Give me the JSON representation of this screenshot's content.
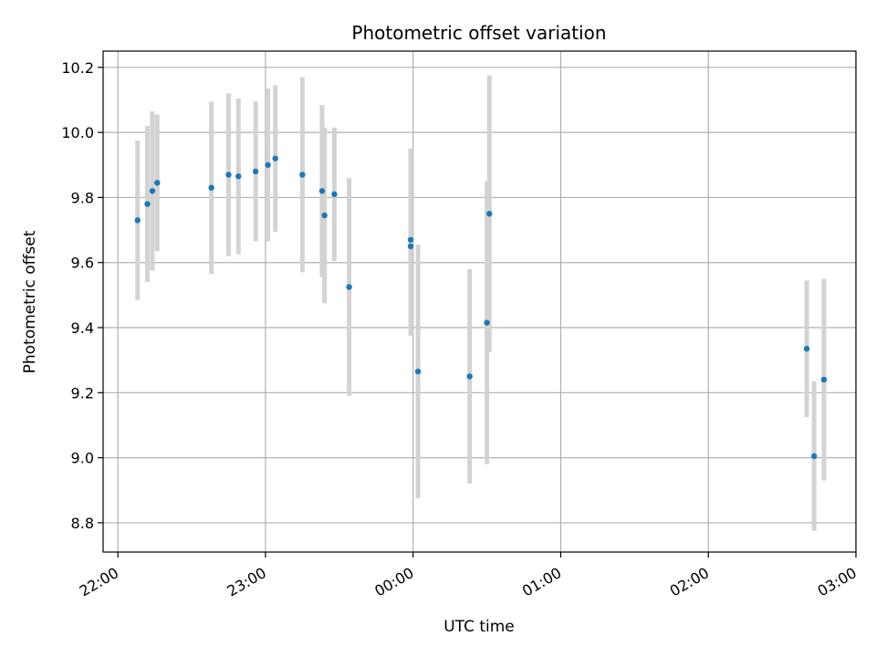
{
  "chart_data": {
    "type": "scatter",
    "title": "Photometric offset variation",
    "xlabel": "UTC time",
    "ylabel": "Photometric offset",
    "grid": true,
    "x_tick_labels": [
      "22:00",
      "23:00",
      "00:00",
      "01:00",
      "02:00",
      "03:00"
    ],
    "x_tick_hours": [
      22,
      23,
      24,
      25,
      26,
      27
    ],
    "xlim_hours": [
      21.9,
      27.0
    ],
    "y_ticks": [
      8.8,
      9.0,
      9.2,
      9.4,
      9.6,
      9.8,
      10.0,
      10.2
    ],
    "ylim": [
      8.71,
      10.25
    ],
    "point_color": "#1f77b4",
    "errorbar_color": "#d3d3d3",
    "points": [
      {
        "time": "22:08",
        "y": 9.73,
        "err": 0.245
      },
      {
        "time": "22:12",
        "y": 9.78,
        "err": 0.24
      },
      {
        "time": "22:14",
        "y": 9.82,
        "err": 0.245
      },
      {
        "time": "22:16",
        "y": 9.845,
        "err": 0.21
      },
      {
        "time": "22:38",
        "y": 9.83,
        "err": 0.265
      },
      {
        "time": "22:45",
        "y": 9.87,
        "err": 0.25
      },
      {
        "time": "22:49",
        "y": 9.865,
        "err": 0.24
      },
      {
        "time": "22:56",
        "y": 9.88,
        "err": 0.215
      },
      {
        "time": "23:01",
        "y": 9.9,
        "err": 0.235
      },
      {
        "time": "23:04",
        "y": 9.92,
        "err": 0.225
      },
      {
        "time": "23:15",
        "y": 9.87,
        "err": 0.3
      },
      {
        "time": "23:23",
        "y": 9.82,
        "err": 0.265
      },
      {
        "time": "23:24",
        "y": 9.745,
        "err": 0.27
      },
      {
        "time": "23:28",
        "y": 9.81,
        "err": 0.205
      },
      {
        "time": "23:34",
        "y": 9.525,
        "err": 0.335
      },
      {
        "time": "23:59",
        "y": 9.67,
        "err": 0.28
      },
      {
        "time": "23:59",
        "y": 9.65,
        "err": 0.275
      },
      {
        "time": "00:02",
        "y": 9.265,
        "err": 0.39
      },
      {
        "time": "00:23",
        "y": 9.25,
        "err": 0.33
      },
      {
        "time": "00:30",
        "y": 9.415,
        "err": 0.435
      },
      {
        "time": "00:31",
        "y": 9.75,
        "err": 0.425
      },
      {
        "time": "02:40",
        "y": 9.335,
        "err": 0.21
      },
      {
        "time": "02:43",
        "y": 9.005,
        "err": 0.23
      },
      {
        "time": "02:47",
        "y": 9.24,
        "err": 0.31
      }
    ]
  }
}
